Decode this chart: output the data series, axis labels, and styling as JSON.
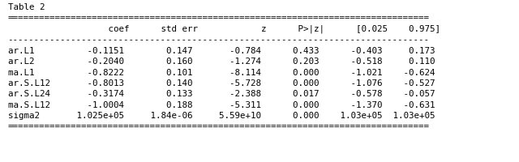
{
  "title": "Table 2",
  "table_lines": [
    "================================================================================",
    "                   coef      std err            z      P>|z|      [0.025    0.975]",
    "--------------------------------------------------------------------------------",
    "ar.L1          -0.1151        0.147       -0.784      0.433      -0.403     0.173",
    "ar.L2          -0.2040        0.160       -1.274      0.203      -0.518     0.110",
    "ma.L1          -0.8222        0.101       -8.114      0.000      -1.021    -0.624",
    "ar.S.L12       -0.8013        0.140       -5.728      0.000      -1.076    -0.527",
    "ar.S.L24       -0.3174        0.133       -2.388      0.017      -0.578    -0.057",
    "ma.S.L12       -1.0004        0.188       -5.311      0.000      -1.370    -0.631",
    "sigma2       1.025e+05     1.84e-06     5.59e+10      0.000    1.03e+05  1.03e+05",
    "================================================================================"
  ],
  "font_family": "monospace",
  "font_size": 7.8,
  "title_font_size": 8.5,
  "bg_color": "#ffffff",
  "text_color": "#000000",
  "fig_width": 6.4,
  "fig_height": 2.01,
  "dpi": 100
}
